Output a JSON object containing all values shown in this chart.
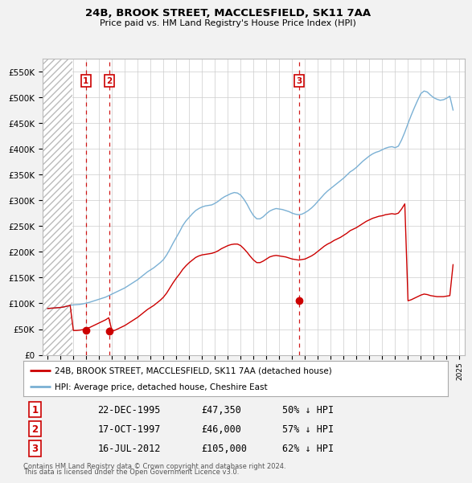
{
  "title": "24B, BROOK STREET, MACCLESFIELD, SK11 7AA",
  "subtitle": "Price paid vs. HM Land Registry's House Price Index (HPI)",
  "red_label": "24B, BROOK STREET, MACCLESFIELD, SK11 7AA (detached house)",
  "blue_label": "HPI: Average price, detached house, Cheshire East",
  "footnote1": "Contains HM Land Registry data © Crown copyright and database right 2024.",
  "footnote2": "This data is licensed under the Open Government Licence v3.0.",
  "sales": [
    {
      "num": 1,
      "date": "22-DEC-1995",
      "price": 47350,
      "pct": "50%",
      "year": 1995.97
    },
    {
      "num": 2,
      "date": "17-OCT-1997",
      "price": 46000,
      "pct": "57%",
      "year": 1997.79
    },
    {
      "num": 3,
      "date": "16-JUL-2012",
      "price": 105000,
      "pct": "62%",
      "year": 2012.54
    }
  ],
  "ylim": [
    0,
    575000
  ],
  "yticks": [
    0,
    50000,
    100000,
    150000,
    200000,
    250000,
    300000,
    350000,
    400000,
    450000,
    500000,
    550000
  ],
  "xlim_left": 1992.6,
  "xlim_right": 2025.4,
  "hatch_end": 1994.9,
  "hpi_blue": {
    "years": [
      1993.0,
      1993.25,
      1993.5,
      1993.75,
      1994.0,
      1994.25,
      1994.5,
      1994.75,
      1995.0,
      1995.25,
      1995.5,
      1995.75,
      1996.0,
      1996.25,
      1996.5,
      1996.75,
      1997.0,
      1997.25,
      1997.5,
      1997.75,
      1998.0,
      1998.25,
      1998.5,
      1998.75,
      1999.0,
      1999.25,
      1999.5,
      1999.75,
      2000.0,
      2000.25,
      2000.5,
      2000.75,
      2001.0,
      2001.25,
      2001.5,
      2001.75,
      2002.0,
      2002.25,
      2002.5,
      2002.75,
      2003.0,
      2003.25,
      2003.5,
      2003.75,
      2004.0,
      2004.25,
      2004.5,
      2004.75,
      2005.0,
      2005.25,
      2005.5,
      2005.75,
      2006.0,
      2006.25,
      2006.5,
      2006.75,
      2007.0,
      2007.25,
      2007.5,
      2007.75,
      2008.0,
      2008.25,
      2008.5,
      2008.75,
      2009.0,
      2009.25,
      2009.5,
      2009.75,
      2010.0,
      2010.25,
      2010.5,
      2010.75,
      2011.0,
      2011.25,
      2011.5,
      2011.75,
      2012.0,
      2012.25,
      2012.5,
      2012.75,
      2013.0,
      2013.25,
      2013.5,
      2013.75,
      2014.0,
      2014.25,
      2014.5,
      2014.75,
      2015.0,
      2015.25,
      2015.5,
      2015.75,
      2016.0,
      2016.25,
      2016.5,
      2016.75,
      2017.0,
      2017.25,
      2017.5,
      2017.75,
      2018.0,
      2018.25,
      2018.5,
      2018.75,
      2019.0,
      2019.25,
      2019.5,
      2019.75,
      2020.0,
      2020.25,
      2020.5,
      2020.75,
      2021.0,
      2021.25,
      2021.5,
      2021.75,
      2022.0,
      2022.25,
      2022.5,
      2022.75,
      2023.0,
      2023.25,
      2023.5,
      2023.75,
      2024.0,
      2024.25,
      2024.5
    ],
    "values": [
      90000,
      90500,
      91000,
      91500,
      92000,
      93000,
      94500,
      96000,
      97000,
      97500,
      98000,
      99000,
      100500,
      102000,
      104000,
      106000,
      108000,
      110000,
      112000,
      115000,
      118000,
      121000,
      124000,
      127000,
      130000,
      134000,
      138000,
      142000,
      146000,
      151000,
      156000,
      161000,
      165000,
      169000,
      174000,
      179000,
      185000,
      194000,
      205000,
      217000,
      228000,
      239000,
      251000,
      260000,
      267000,
      274000,
      280000,
      284000,
      287000,
      289000,
      290000,
      291000,
      294000,
      298000,
      303000,
      307000,
      310000,
      313000,
      315000,
      314000,
      310000,
      302000,
      292000,
      280000,
      270000,
      264000,
      264000,
      268000,
      274000,
      279000,
      282000,
      284000,
      283000,
      282000,
      280000,
      278000,
      275000,
      273000,
      272000,
      273000,
      276000,
      280000,
      285000,
      291000,
      298000,
      305000,
      312000,
      318000,
      323000,
      328000,
      333000,
      338000,
      343000,
      349000,
      355000,
      359000,
      364000,
      370000,
      376000,
      381000,
      386000,
      390000,
      393000,
      395000,
      398000,
      401000,
      403000,
      404000,
      402000,
      405000,
      417000,
      432000,
      449000,
      465000,
      480000,
      494000,
      507000,
      512000,
      510000,
      504000,
      499000,
      496000,
      494000,
      495000,
      498000,
      502000,
      475000
    ]
  },
  "hpi_red": {
    "years": [
      1993.0,
      1993.25,
      1993.5,
      1993.75,
      1994.0,
      1994.25,
      1994.5,
      1994.75,
      1995.0,
      1995.25,
      1995.5,
      1995.75,
      1996.0,
      1996.25,
      1996.5,
      1996.75,
      1997.0,
      1997.25,
      1997.5,
      1997.75,
      1998.0,
      1998.25,
      1998.5,
      1998.75,
      1999.0,
      1999.25,
      1999.5,
      1999.75,
      2000.0,
      2000.25,
      2000.5,
      2000.75,
      2001.0,
      2001.25,
      2001.5,
      2001.75,
      2002.0,
      2002.25,
      2002.5,
      2002.75,
      2003.0,
      2003.25,
      2003.5,
      2003.75,
      2004.0,
      2004.25,
      2004.5,
      2004.75,
      2005.0,
      2005.25,
      2005.5,
      2005.75,
      2006.0,
      2006.25,
      2006.5,
      2006.75,
      2007.0,
      2007.25,
      2007.5,
      2007.75,
      2008.0,
      2008.25,
      2008.5,
      2008.75,
      2009.0,
      2009.25,
      2009.5,
      2009.75,
      2010.0,
      2010.25,
      2010.5,
      2010.75,
      2011.0,
      2011.25,
      2011.5,
      2011.75,
      2012.0,
      2012.25,
      2012.5,
      2012.75,
      2013.0,
      2013.25,
      2013.5,
      2013.75,
      2014.0,
      2014.25,
      2014.5,
      2014.75,
      2015.0,
      2015.25,
      2015.5,
      2015.75,
      2016.0,
      2016.25,
      2016.5,
      2016.75,
      2017.0,
      2017.25,
      2017.5,
      2017.75,
      2018.0,
      2018.25,
      2018.5,
      2018.75,
      2019.0,
      2019.25,
      2019.5,
      2019.75,
      2020.0,
      2020.25,
      2020.5,
      2020.75,
      2021.0,
      2021.25,
      2021.5,
      2021.75,
      2022.0,
      2022.25,
      2022.5,
      2022.75,
      2023.0,
      2023.25,
      2023.5,
      2023.75,
      2024.0,
      2024.25,
      2024.5
    ],
    "values": [
      90000,
      90500,
      91000,
      91500,
      92000,
      93000,
      94500,
      96000,
      47350,
      47350,
      48000,
      49000,
      51000,
      53000,
      56000,
      59000,
      62000,
      65000,
      68000,
      72000,
      46000,
      48000,
      51000,
      54000,
      57000,
      61000,
      65000,
      69000,
      73000,
      78000,
      83000,
      88000,
      92000,
      96000,
      101000,
      106000,
      112000,
      120000,
      130000,
      140000,
      149000,
      157000,
      166000,
      173000,
      179000,
      184000,
      189000,
      192000,
      194000,
      195000,
      196000,
      197000,
      199000,
      202000,
      206000,
      209000,
      212000,
      214000,
      215000,
      215000,
      212000,
      206000,
      199000,
      191000,
      184000,
      179000,
      179000,
      182000,
      186000,
      190000,
      192000,
      193000,
      192000,
      191000,
      190000,
      188000,
      186000,
      185000,
      184000,
      185000,
      186000,
      189000,
      192000,
      196000,
      201000,
      206000,
      211000,
      215000,
      218000,
      222000,
      225000,
      228000,
      232000,
      236000,
      241000,
      244000,
      247000,
      251000,
      255000,
      259000,
      262000,
      265000,
      267000,
      269000,
      270000,
      272000,
      273000,
      274000,
      273000,
      275000,
      283000,
      293000,
      105000,
      107000,
      110000,
      113000,
      116000,
      118000,
      117000,
      115000,
      114000,
      113000,
      113000,
      113000,
      114000,
      115000,
      175000
    ]
  },
  "bg_color": "#f2f2f2",
  "plot_bg": "#ffffff",
  "grid_color": "#cccccc",
  "red_color": "#cc0000",
  "blue_color": "#7ab0d4",
  "sale_line_color": "#cc0000"
}
